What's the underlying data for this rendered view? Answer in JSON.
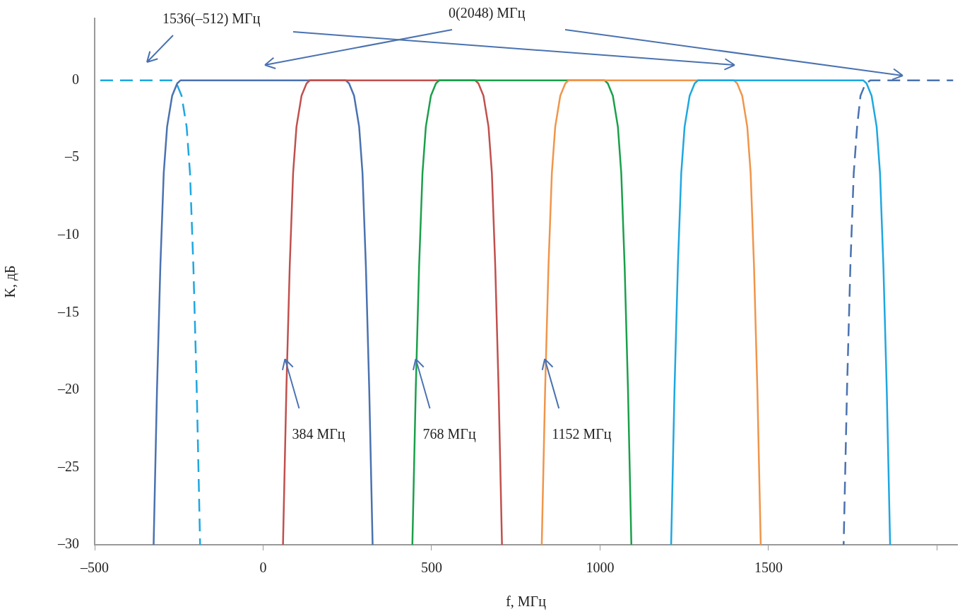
{
  "chart_data": {
    "type": "line",
    "xlabel": "f, МГц",
    "ylabel": "K, дБ",
    "xlim": [
      -500,
      2060
    ],
    "ylim": [
      -30,
      4
    ],
    "xticks": [
      {
        "value": -500,
        "label": "–500"
      },
      0,
      500,
      1000,
      1500,
      {
        "value": 2000,
        "label": null
      }
    ],
    "yticks": [
      0,
      {
        "value": -5,
        "label": "–5"
      },
      {
        "value": -10,
        "label": "–10"
      },
      {
        "value": -15,
        "label": "–15"
      },
      {
        "value": -20,
        "label": "–20"
      },
      {
        "value": -25,
        "label": "–25"
      },
      {
        "value": -30,
        "label": "–30"
      }
    ],
    "grid": false,
    "legend": false,
    "marker": "none",
    "series": [
      {
        "color": "#1ea7e1",
        "line_style": "dashed",
        "x": [
          -500,
          -267,
          -257,
          -242,
          -227,
          -217,
          -207,
          -197,
          -187
        ],
        "values": [
          0,
          0,
          -0.2,
          -1,
          -3,
          -6,
          -12,
          -20,
          -30
        ]
      },
      {
        "color": "#4a72b0",
        "x": [
          -325,
          -315,
          -305,
          -295,
          -285,
          -270,
          -255,
          -245,
          245,
          255,
          270,
          285,
          295,
          305,
          315,
          325
        ],
        "values": [
          -30,
          -20,
          -12,
          -6,
          -3,
          -1,
          -0.2,
          0,
          0,
          -0.2,
          -1,
          -3,
          -6,
          -12,
          -20,
          -30
        ]
      },
      {
        "color": "#c0504d",
        "x": [
          59,
          69,
          79,
          89,
          99,
          114,
          129,
          139,
          629,
          639,
          654,
          669,
          679,
          689,
          699,
          709
        ],
        "values": [
          -30,
          -20,
          -12,
          -6,
          -3,
          -1,
          -0.2,
          0,
          0,
          -0.2,
          -1,
          -3,
          -6,
          -12,
          -20,
          -30
        ]
      },
      {
        "color": "#1aa04a",
        "x": [
          443,
          453,
          463,
          473,
          483,
          498,
          513,
          523,
          1013,
          1023,
          1038,
          1053,
          1063,
          1073,
          1083,
          1093
        ],
        "values": [
          -30,
          -20,
          -12,
          -6,
          -3,
          -1,
          -0.2,
          0,
          0,
          -0.2,
          -1,
          -3,
          -6,
          -12,
          -20,
          -30
        ]
      },
      {
        "color": "#f0954a",
        "x": [
          827,
          837,
          847,
          857,
          867,
          882,
          897,
          907,
          1397,
          1407,
          1422,
          1437,
          1447,
          1457,
          1467,
          1477
        ],
        "values": [
          -30,
          -20,
          -12,
          -6,
          -3,
          -1,
          -0.2,
          0,
          0,
          -0.2,
          -1,
          -3,
          -6,
          -12,
          -20,
          -30
        ]
      },
      {
        "color": "#1ea7e1",
        "x": [
          1211,
          1221,
          1231,
          1241,
          1251,
          1266,
          1281,
          1291,
          1781,
          1791,
          1806,
          1821,
          1831,
          1841,
          1851,
          1861
        ],
        "values": [
          -30,
          -20,
          -12,
          -6,
          -3,
          -1,
          -0.2,
          0,
          0,
          -0.2,
          -1,
          -3,
          -6,
          -12,
          -20,
          -30
        ]
      },
      {
        "color": "#4a72b0",
        "line_style": "dashed",
        "x": [
          1723,
          1733,
          1743,
          1753,
          1763,
          1773,
          1788,
          1803,
          2048
        ],
        "values": [
          -30,
          -20,
          -12,
          -6,
          -3,
          -1,
          -0.2,
          0,
          0
        ]
      }
    ],
    "annotations": [
      "1536(–512) МГц",
      "0(2048) МГц",
      {
        "text": "384 МГц",
        "x": 65,
        "y": -18
      },
      {
        "text": "768 МГц",
        "x": 453,
        "y": -18
      },
      {
        "text": "1152 МГц",
        "x": 836,
        "y": -18
      }
    ]
  }
}
